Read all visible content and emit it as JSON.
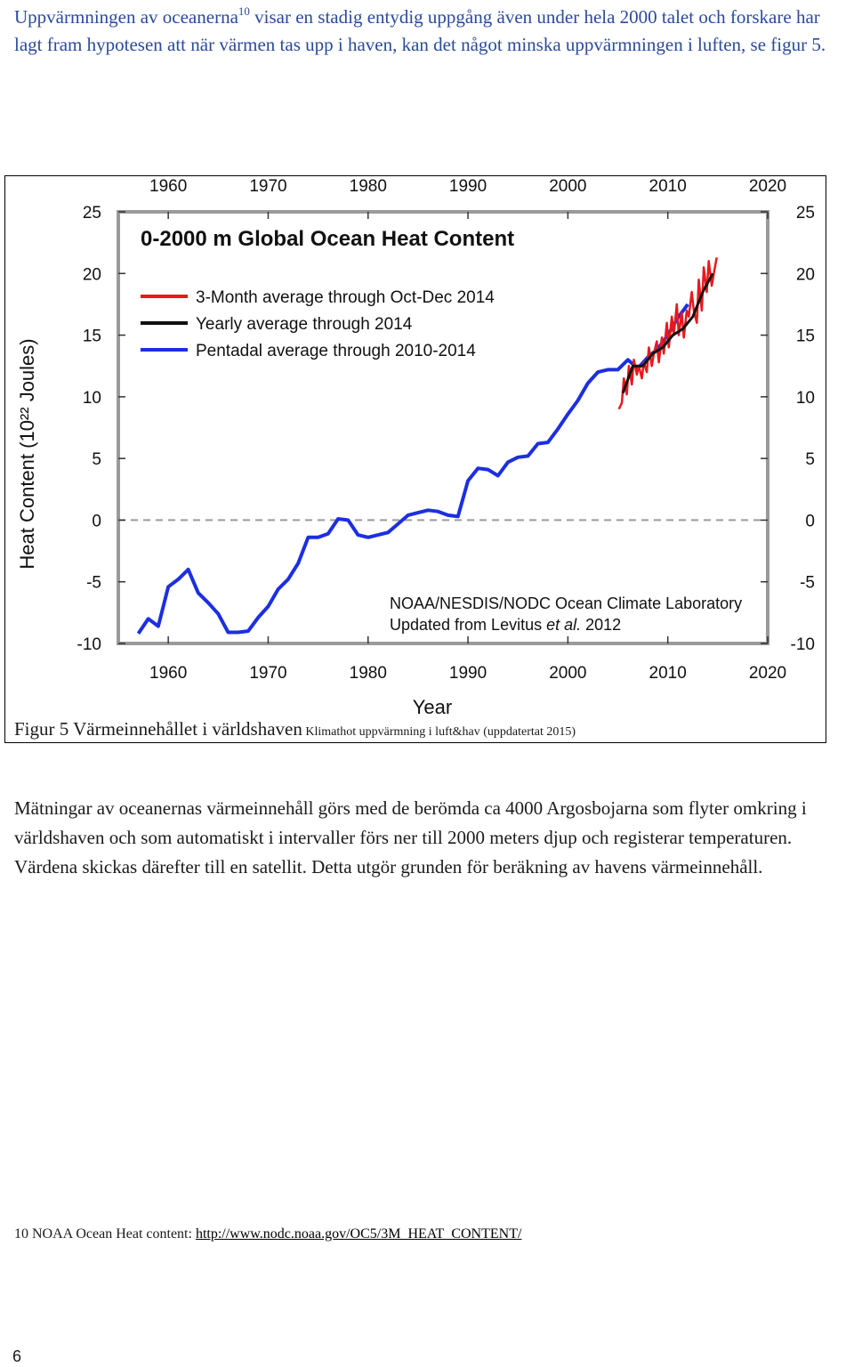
{
  "intro": {
    "part1": "Uppvärmningen av oceanerna",
    "sup": "10",
    "part2": " visar en stadig entydig uppgång även under hela 2000 talet och forskare har lagt fram hypotesen att när värmen tas upp i haven, kan det något minska uppvärmningen i luften, se figur 5."
  },
  "caption": {
    "main": "Figur 5 Värmeinnehållet i världshaven",
    "small": " Klimathot uppvärmning i luft&hav (uppdatertat 2015)"
  },
  "body_text": "Mätningar av oceanernas värmeinnehåll görs med de berömda ca 4000 Argosbojarna som flyter omkring i världshaven och som automatiskt i intervaller förs ner till 2000 meters djup och registerar temperaturen. Värdena skickas därefter till en satellit. Detta utgör grunden för beräkning av havens värmeinnehåll.",
  "footnote": {
    "label": "10 NOAA Ocean Heat content: ",
    "link": "http://www.nodc.noaa.gov/OC5/3M_HEAT_CONTENT/"
  },
  "page_number": "6",
  "chart_data": {
    "type": "line",
    "title": "0-2000 m Global Ocean Heat Content",
    "xlabel": "Year",
    "ylabel": "Heat Content (10²² Joules)",
    "xlim": [
      1955,
      2020
    ],
    "ylim": [
      -10,
      25
    ],
    "x_ticks": [
      1960,
      1970,
      1980,
      1990,
      2000,
      2010,
      2020
    ],
    "y_ticks": [
      -10,
      -5,
      0,
      5,
      10,
      15,
      20,
      25
    ],
    "zero_line": true,
    "credit_line1": "NOAA/NESDIS/NODC Ocean Climate Laboratory",
    "credit_line2_prefix": "Updated from Levitus ",
    "credit_line2_italic": "et al.",
    "credit_line2_suffix": " 2012",
    "legend_position": "top-left",
    "series": [
      {
        "name": "3-Month average through Oct-Dec 2014",
        "color": "#e8191c",
        "x": [
          2005.1,
          2005.4,
          2005.6,
          2005.9,
          2006.1,
          2006.4,
          2006.6,
          2006.9,
          2007.1,
          2007.4,
          2007.6,
          2007.9,
          2008.1,
          2008.4,
          2008.6,
          2008.9,
          2009.1,
          2009.4,
          2009.6,
          2009.9,
          2010.1,
          2010.4,
          2010.6,
          2010.9,
          2011.1,
          2011.4,
          2011.6,
          2011.9,
          2012.1,
          2012.4,
          2012.6,
          2012.9,
          2013.1,
          2013.4,
          2013.6,
          2013.9,
          2014.1,
          2014.4,
          2014.6,
          2014.9
        ],
        "y": [
          9.0,
          9.5,
          11.5,
          10.2,
          12.5,
          11.0,
          13.0,
          11.8,
          12.5,
          11.5,
          12.8,
          12.0,
          14.0,
          12.5,
          13.5,
          14.5,
          12.8,
          14.8,
          13.5,
          16.0,
          14.0,
          16.5,
          15.0,
          17.5,
          15.0,
          16.8,
          14.8,
          17.0,
          16.5,
          18.5,
          17.0,
          16.0,
          19.5,
          17.0,
          20.5,
          18.5,
          21.0,
          19.0,
          20.0,
          21.3
        ]
      },
      {
        "name": "Yearly average through 2014",
        "color": "#111111",
        "x": [
          2005.5,
          2006.5,
          2007.5,
          2008.5,
          2009.5,
          2010.5,
          2011.5,
          2012.5,
          2013.5,
          2014.5
        ],
        "y": [
          10.3,
          12.5,
          12.5,
          13.5,
          14.0,
          15.0,
          15.5,
          16.5,
          18.5,
          20.0
        ]
      },
      {
        "name": "Pentadal average through 2010-2014",
        "color": "#1c2fe0",
        "x": [
          1957,
          1958,
          1959,
          1960,
          1961,
          1962,
          1963,
          1964,
          1965,
          1966,
          1967,
          1968,
          1969,
          1970,
          1971,
          1972,
          1973,
          1974,
          1975,
          1976,
          1977,
          1978,
          1979,
          1980,
          1981,
          1982,
          1983,
          1984,
          1985,
          1986,
          1987,
          1988,
          1989,
          1990,
          1991,
          1992,
          1993,
          1994,
          1995,
          1996,
          1997,
          1998,
          1999,
          2000,
          2001,
          2002,
          2003,
          2004,
          2005,
          2006,
          2007,
          2008,
          2009,
          2010,
          2011,
          2012
        ],
        "y": [
          -9.2,
          -8.0,
          -8.6,
          -5.4,
          -4.8,
          -4.0,
          -5.9,
          -6.7,
          -7.6,
          -9.1,
          -9.1,
          -9.0,
          -7.9,
          -7.0,
          -5.6,
          -4.8,
          -3.5,
          -1.4,
          -1.4,
          -1.1,
          0.1,
          0.0,
          -1.2,
          -1.4,
          -1.2,
          -1.0,
          -0.3,
          0.4,
          0.6,
          0.8,
          0.7,
          0.4,
          0.3,
          3.2,
          4.2,
          4.1,
          3.6,
          4.7,
          5.1,
          5.2,
          6.2,
          6.3,
          7.4,
          8.6,
          9.7,
          11.1,
          12.0,
          12.2,
          12.2,
          13.0,
          12.3,
          13.2,
          13.9,
          15.0,
          16.4,
          17.5
        ]
      }
    ]
  }
}
